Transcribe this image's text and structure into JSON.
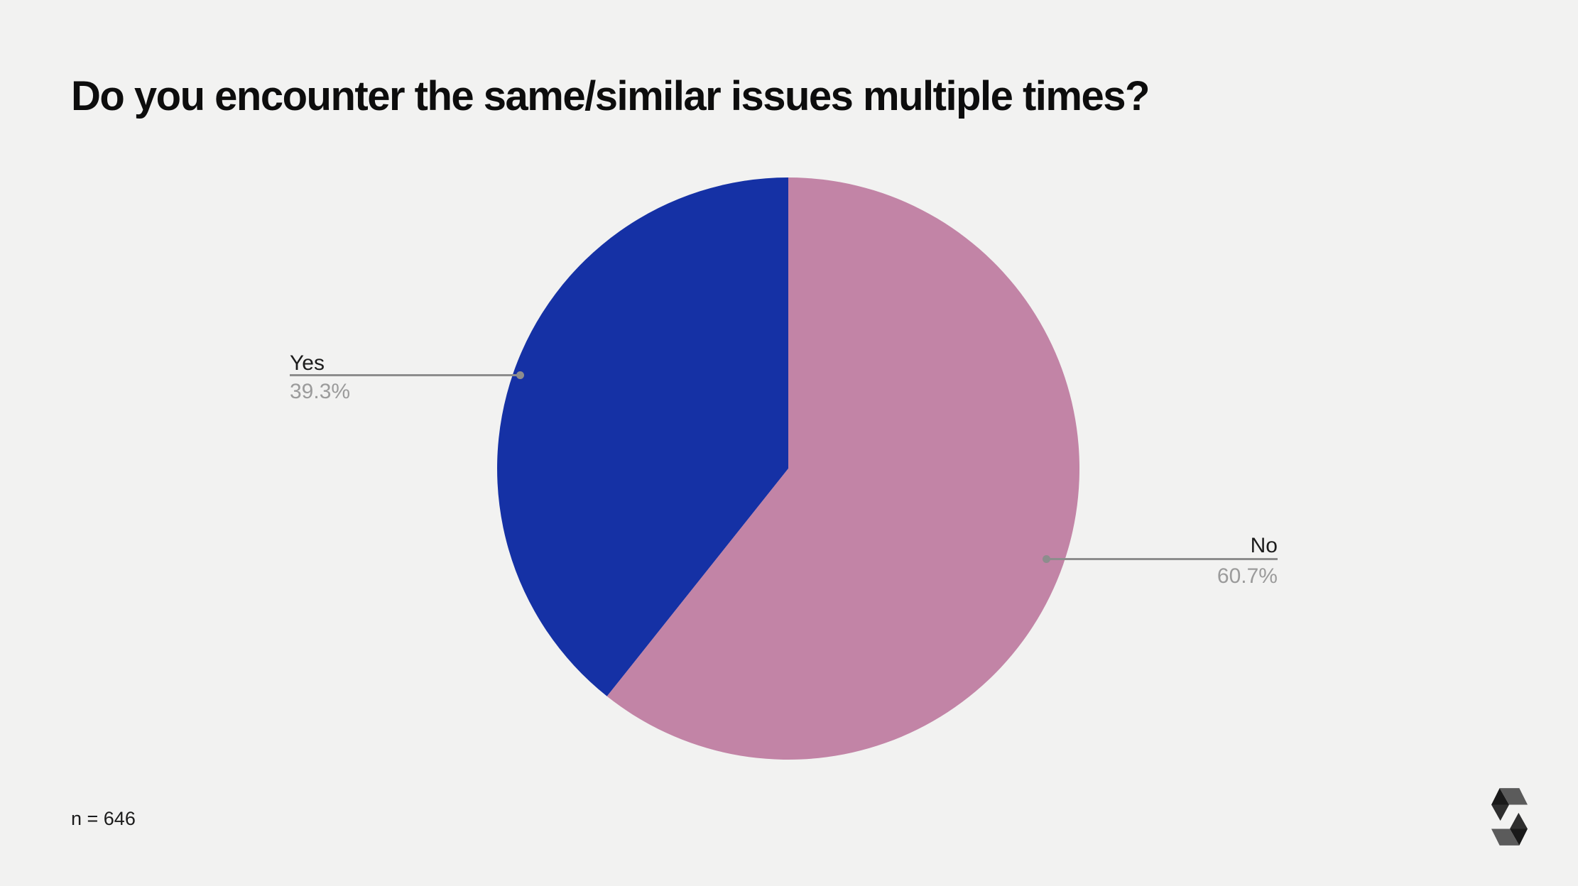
{
  "chart_data": {
    "type": "pie",
    "title": "Do you encounter the same/similar issues multiple times?",
    "slices": [
      {
        "label": "Yes",
        "value": 39.3,
        "pct_label": "39.3%",
        "color": "#1531a5"
      },
      {
        "label": "No",
        "value": 60.7,
        "pct_label": "60.7%",
        "color": "#c284a6"
      }
    ],
    "start_angle_deg": 0,
    "layout_note": "Yes slice sweeps counterclockwise from 12 o'clock; No slice fills the rest clockwise",
    "legend_position": "outside callout labels with leader lines",
    "colors": {
      "background": "#f2f2f1",
      "label_text": "#1c1c1c",
      "pct_text": "#9b9b9b",
      "leader_line": "#8d8d8d"
    }
  },
  "footer": {
    "sample_size": "n = 646",
    "logo_icon": "solidity-logo"
  }
}
